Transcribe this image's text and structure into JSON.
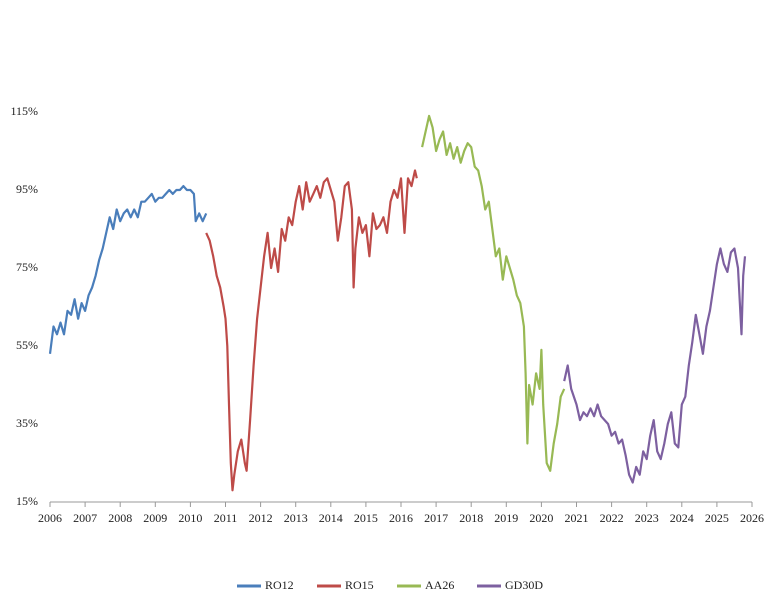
{
  "chart_data": {
    "type": "line",
    "xlim": [
      2006,
      2026
    ],
    "xticks": [
      2006,
      2007,
      2008,
      2009,
      2010,
      2011,
      2012,
      2013,
      2014,
      2015,
      2016,
      2017,
      2018,
      2019,
      2020,
      2021,
      2022,
      2023,
      2024,
      2025,
      2026
    ],
    "ylim": [
      15,
      115
    ],
    "yticks": [
      {
        "value": 15,
        "label": "15%"
      },
      {
        "value": 35,
        "label": "35%"
      },
      {
        "value": 55,
        "label": "55%"
      },
      {
        "value": 75,
        "label": "75%"
      },
      {
        "value": 95,
        "label": "95%"
      },
      {
        "value": 115,
        "label": "115%"
      }
    ],
    "legend": "bottom",
    "series": [
      {
        "name": "RO12",
        "color": "#4a7ebb",
        "x": [
          2006.0,
          2006.1,
          2006.2,
          2006.3,
          2006.4,
          2006.5,
          2006.6,
          2006.7,
          2006.8,
          2006.9,
          2007.0,
          2007.1,
          2007.2,
          2007.3,
          2007.4,
          2007.5,
          2007.6,
          2007.7,
          2007.8,
          2007.9,
          2008.0,
          2008.1,
          2008.2,
          2008.3,
          2008.4,
          2008.5,
          2008.6,
          2008.7,
          2008.8,
          2008.9,
          2009.0,
          2009.1,
          2009.2,
          2009.3,
          2009.4,
          2009.5,
          2009.6,
          2009.7,
          2009.8,
          2009.9,
          2010.0,
          2010.1,
          2010.15,
          2010.25,
          2010.35,
          2010.45
        ],
        "values": [
          53,
          60,
          58,
          61,
          58,
          64,
          63,
          67,
          62,
          66,
          64,
          68,
          70,
          73,
          77,
          80,
          84,
          88,
          85,
          90,
          87,
          89,
          90,
          88,
          90,
          88,
          92,
          92,
          93,
          94,
          92,
          93,
          93,
          94,
          95,
          94,
          95,
          95,
          96,
          95,
          95,
          94,
          87,
          89,
          87,
          89
        ]
      },
      {
        "name": "RO15",
        "color": "#be4b48",
        "x": [
          2010.45,
          2010.55,
          2010.65,
          2010.75,
          2010.85,
          2010.95,
          2011.0,
          2011.05,
          2011.1,
          2011.15,
          2011.2,
          2011.25,
          2011.35,
          2011.45,
          2011.55,
          2011.6,
          2011.7,
          2011.8,
          2011.9,
          2012.0,
          2012.1,
          2012.2,
          2012.3,
          2012.4,
          2012.5,
          2012.6,
          2012.7,
          2012.8,
          2012.9,
          2013.0,
          2013.1,
          2013.2,
          2013.3,
          2013.4,
          2013.5,
          2013.6,
          2013.7,
          2013.8,
          2013.9,
          2014.0,
          2014.1,
          2014.2,
          2014.3,
          2014.4,
          2014.5,
          2014.6,
          2014.65,
          2014.7,
          2014.8,
          2014.9,
          2015.0,
          2015.1,
          2015.2,
          2015.3,
          2015.4,
          2015.5,
          2015.6,
          2015.7,
          2015.8,
          2015.9,
          2016.0,
          2016.1,
          2016.2,
          2016.3,
          2016.4,
          2016.45
        ],
        "values": [
          84,
          82,
          78,
          73,
          70,
          65,
          62,
          55,
          40,
          25,
          18,
          22,
          28,
          31,
          25,
          23,
          36,
          50,
          62,
          70,
          78,
          84,
          75,
          80,
          74,
          85,
          82,
          88,
          86,
          92,
          96,
          90,
          97,
          92,
          94,
          96,
          93,
          97,
          98,
          95,
          92,
          82,
          88,
          96,
          97,
          90,
          70,
          80,
          88,
          84,
          86,
          78,
          89,
          85,
          86,
          88,
          84,
          92,
          95,
          93,
          98,
          84,
          98,
          96,
          100,
          98
        ]
      },
      {
        "name": "AA26",
        "color": "#98b954",
        "x": [
          2016.6,
          2016.7,
          2016.8,
          2016.9,
          2017.0,
          2017.1,
          2017.2,
          2017.3,
          2017.4,
          2017.5,
          2017.6,
          2017.7,
          2017.8,
          2017.9,
          2018.0,
          2018.1,
          2018.2,
          2018.3,
          2018.4,
          2018.5,
          2018.6,
          2018.7,
          2018.8,
          2018.9,
          2019.0,
          2019.1,
          2019.2,
          2019.3,
          2019.4,
          2019.5,
          2019.55,
          2019.6,
          2019.65,
          2019.75,
          2019.85,
          2019.95,
          2020.0,
          2020.05,
          2020.15,
          2020.25,
          2020.35,
          2020.45,
          2020.55,
          2020.65
        ],
        "values": [
          106,
          110,
          114,
          111,
          105,
          108,
          110,
          104,
          107,
          103,
          106,
          102,
          105,
          107,
          106,
          101,
          100,
          96,
          90,
          92,
          85,
          78,
          80,
          72,
          78,
          75,
          72,
          68,
          66,
          60,
          48,
          30,
          45,
          40,
          48,
          44,
          54,
          40,
          25,
          23,
          30,
          35,
          42,
          44
        ]
      },
      {
        "name": "GD30D",
        "color": "#7d60a0",
        "x": [
          2020.65,
          2020.75,
          2020.85,
          2021.0,
          2021.1,
          2021.2,
          2021.3,
          2021.4,
          2021.5,
          2021.6,
          2021.7,
          2021.8,
          2021.9,
          2022.0,
          2022.1,
          2022.2,
          2022.3,
          2022.4,
          2022.5,
          2022.6,
          2022.7,
          2022.8,
          2022.9,
          2023.0,
          2023.1,
          2023.2,
          2023.3,
          2023.4,
          2023.5,
          2023.6,
          2023.7,
          2023.8,
          2023.9,
          2024.0,
          2024.1,
          2024.2,
          2024.3,
          2024.4,
          2024.5,
          2024.6,
          2024.7,
          2024.8,
          2024.9,
          2025.0,
          2025.1,
          2025.2,
          2025.3,
          2025.4,
          2025.5,
          2025.6,
          2025.7,
          2025.75,
          2025.8
        ],
        "values": [
          46,
          50,
          44,
          40,
          36,
          38,
          37,
          39,
          37,
          40,
          37,
          36,
          35,
          32,
          33,
          30,
          31,
          27,
          22,
          20,
          24,
          22,
          28,
          26,
          32,
          36,
          28,
          26,
          30,
          35,
          38,
          30,
          29,
          40,
          42,
          50,
          56,
          63,
          58,
          53,
          60,
          64,
          70,
          76,
          80,
          76,
          74,
          79,
          80,
          75,
          58,
          73,
          78
        ]
      }
    ]
  }
}
